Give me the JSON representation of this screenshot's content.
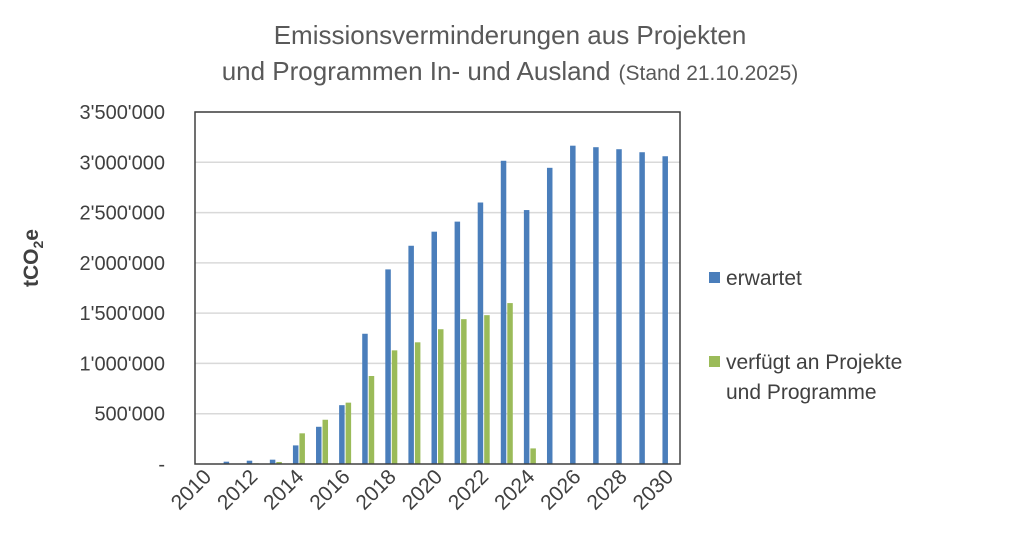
{
  "chart_data": {
    "type": "bar",
    "title_line1": "Emissionsverminderungen aus Projekten",
    "title_line2": "und Programmen In- und Ausland",
    "subtitle": "(Stand 21.10.2025)",
    "ylabel": "tCO2e",
    "ylabel_main": "tCO",
    "ylabel_sub": "2",
    "ylabel_tail": "e",
    "ylim": [
      0,
      3500000
    ],
    "grid": true,
    "legend_position": "right",
    "y_tick_labels": [
      "-",
      "500'000",
      "1'000'000",
      "1'500'000",
      "2'000'000",
      "2'500'000",
      "3'000'000",
      "3'500'000"
    ],
    "y_tick_values": [
      0,
      500000,
      1000000,
      1500000,
      2000000,
      2500000,
      3000000,
      3500000
    ],
    "categories": [
      2010,
      2011,
      2012,
      2013,
      2014,
      2015,
      2016,
      2017,
      2018,
      2019,
      2020,
      2021,
      2022,
      2023,
      2024,
      2025,
      2026,
      2027,
      2028,
      2029,
      2030
    ],
    "x_tick_labels": [
      "2010",
      "2012",
      "2014",
      "2016",
      "2018",
      "2020",
      "2022",
      "2024",
      "2026",
      "2028",
      "2030"
    ],
    "series": [
      {
        "name": "erwartet",
        "color": "#4a7ebb",
        "values": [
          0,
          23000,
          33000,
          43000,
          185000,
          370000,
          585000,
          1295000,
          1935000,
          2170000,
          2310000,
          2410000,
          2600000,
          3015000,
          2525000,
          2945000,
          3165000,
          3150000,
          3130000,
          3100000,
          3060000
        ]
      },
      {
        "name": "verfügt an Projekte und Programme",
        "name_line1": "verfügt an Projekte",
        "name_line2": "und Programme",
        "color": "#9bbb59",
        "values": [
          0,
          0,
          7000,
          20000,
          305000,
          440000,
          610000,
          875000,
          1130000,
          1210000,
          1340000,
          1440000,
          1480000,
          1600000,
          155000,
          0,
          0,
          0,
          0,
          0,
          0
        ]
      }
    ]
  }
}
